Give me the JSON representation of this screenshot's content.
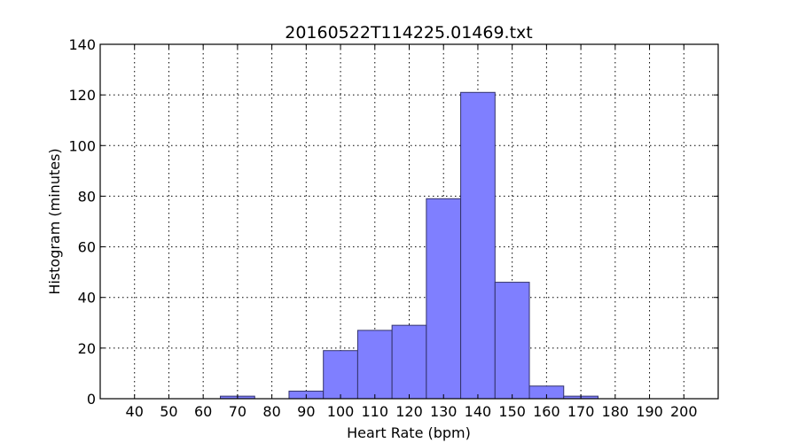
{
  "chart_data": {
    "type": "bar",
    "title": "20160522T114225.01469.txt",
    "xlabel": "Heart Rate (bpm)",
    "ylabel": "Histogram (minutes)",
    "xlim": [
      30,
      210
    ],
    "ylim": [
      0,
      140
    ],
    "grid": true,
    "bin_width": 10,
    "bins": [
      {
        "start": 35,
        "value": 0
      },
      {
        "start": 45,
        "value": 0
      },
      {
        "start": 55,
        "value": 0
      },
      {
        "start": 65,
        "value": 1
      },
      {
        "start": 75,
        "value": 0
      },
      {
        "start": 85,
        "value": 3
      },
      {
        "start": 95,
        "value": 19
      },
      {
        "start": 105,
        "value": 27
      },
      {
        "start": 115,
        "value": 29
      },
      {
        "start": 125,
        "value": 79
      },
      {
        "start": 135,
        "value": 121
      },
      {
        "start": 145,
        "value": 46
      },
      {
        "start": 155,
        "value": 5
      },
      {
        "start": 165,
        "value": 1
      },
      {
        "start": 175,
        "value": 0
      },
      {
        "start": 185,
        "value": 0
      },
      {
        "start": 195,
        "value": 0
      }
    ],
    "xticks": [
      "40",
      "50",
      "60",
      "70",
      "80",
      "90",
      "100",
      "110",
      "120",
      "130",
      "140",
      "150",
      "160",
      "170",
      "180",
      "190",
      "200"
    ],
    "yticks": [
      "0",
      "20",
      "40",
      "60",
      "80",
      "100",
      "120",
      "140"
    ],
    "colors": {
      "bar_fill": "#7f7fff",
      "bar_edge": "#33336b"
    }
  }
}
